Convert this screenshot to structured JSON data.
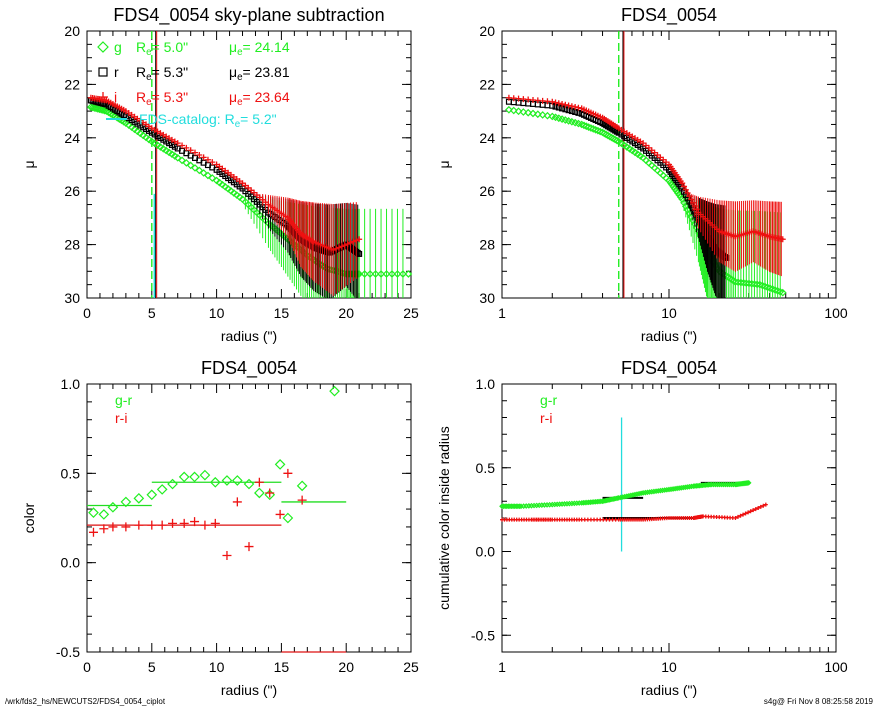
{
  "page": {
    "footer_left": "/wrk/fds2_hs/NEWCUTS2/FDS4_0054_ciplot",
    "footer_right": "s4g@  Fri Nov  8 08:25:58 2019"
  },
  "colors": {
    "g": "#22ee22",
    "r": "#000000",
    "i": "#ee1111",
    "catalog": "#22dddd",
    "color_line": "#22dd22",
    "ri_line": "#dd1111"
  },
  "chart_data": [
    {
      "id": "profile-linear",
      "type": "scatter",
      "title": "FDS4_0054 sky-plane subtraction",
      "xlabel": "radius (\")",
      "ylabel": "μ",
      "xlim": [
        0,
        25
      ],
      "ylim": [
        30,
        20
      ],
      "xticks": [
        "0",
        "5",
        "10",
        "15",
        "20",
        "25"
      ],
      "yticks": [
        "20",
        "22",
        "24",
        "26",
        "28",
        "30"
      ],
      "legend": [
        {
          "band": "g",
          "symbol": "diamond",
          "re_label": "R",
          "re_sub": "e",
          "re_value": "=   5.0\"",
          "mu_label": "μ",
          "mu_sub": "e",
          "mu_value": "= 24.14"
        },
        {
          "band": "r",
          "symbol": "square",
          "re_label": "R",
          "re_sub": "e",
          "re_value": "=   5.3\"",
          "mu_label": "μ",
          "mu_sub": "e",
          "mu_value": "= 23.81"
        },
        {
          "band": "i",
          "symbol": "plus",
          "re_label": "R",
          "re_sub": "e",
          "re_value": "=   5.3\"",
          "mu_label": "μ",
          "mu_sub": "e",
          "mu_value": "= 23.64"
        }
      ],
      "catalog_label": "FDS-catalog: R",
      "catalog_sub": "e",
      "catalog_value": "=   5.2\"",
      "re_markers": {
        "g": 5.0,
        "r": 5.3,
        "i": 5.3,
        "catalog": 5.2
      },
      "series": [
        {
          "name": "g",
          "points": [
            [
              0.3,
              22.85
            ],
            [
              1.5,
              23.0
            ],
            [
              3,
              23.45
            ],
            [
              5,
              24.14
            ],
            [
              7,
              24.75
            ],
            [
              10,
              25.6
            ],
            [
              12,
              26.3
            ],
            [
              14,
              27.2
            ],
            [
              15.5,
              27.8
            ],
            [
              17,
              28.4
            ],
            [
              18.5,
              28.9
            ],
            [
              20,
              29.1
            ],
            [
              21,
              29.1
            ],
            [
              24.8,
              29.1
            ]
          ]
        },
        {
          "name": "r",
          "points": [
            [
              0.3,
              22.6
            ],
            [
              1.5,
              22.75
            ],
            [
              3,
              23.2
            ],
            [
              5,
              23.81
            ],
            [
              7,
              24.4
            ],
            [
              10,
              25.2
            ],
            [
              12,
              25.9
            ],
            [
              14,
              26.8
            ],
            [
              15.5,
              27.3
            ],
            [
              16.5,
              27.8
            ],
            [
              17.5,
              28.1
            ],
            [
              18.7,
              28.3
            ],
            [
              20,
              28.0
            ],
            [
              21,
              28.35
            ]
          ]
        },
        {
          "name": "i",
          "points": [
            [
              0.3,
              22.5
            ],
            [
              1.5,
              22.6
            ],
            [
              3,
              23.0
            ],
            [
              5,
              23.64
            ],
            [
              7,
              24.2
            ],
            [
              10,
              25.0
            ],
            [
              12,
              25.7
            ],
            [
              14,
              26.5
            ],
            [
              15.5,
              27.0
            ],
            [
              16.5,
              27.6
            ],
            [
              17.5,
              27.9
            ],
            [
              19,
              28.2
            ],
            [
              21,
              27.8
            ]
          ]
        }
      ]
    },
    {
      "id": "profile-log",
      "type": "scatter",
      "title": "FDS4_0054",
      "xlabel": "radius (\")",
      "ylabel": "μ",
      "xscale": "log",
      "xlim": [
        1,
        100
      ],
      "ylim": [
        30,
        20
      ],
      "xticks": [
        "1",
        "10",
        "100"
      ],
      "yticks": [
        "20",
        "22",
        "24",
        "26",
        "28",
        "30"
      ],
      "re_markers": {
        "g": 5.0,
        "r": 5.3,
        "i": 5.3
      },
      "series": [
        {
          "name": "g",
          "points": [
            [
              1.1,
              22.95
            ],
            [
              2,
              23.2
            ],
            [
              3,
              23.5
            ],
            [
              4,
              23.8
            ],
            [
              5,
              24.14
            ],
            [
              7,
              24.75
            ],
            [
              10,
              25.6
            ],
            [
              12,
              26.3
            ],
            [
              15,
              27.5
            ],
            [
              17,
              28.3
            ],
            [
              20,
              29.0
            ],
            [
              25,
              29.4
            ],
            [
              35,
              29.5
            ],
            [
              48,
              29.8
            ]
          ]
        },
        {
          "name": "r",
          "points": [
            [
              1.1,
              22.65
            ],
            [
              2,
              22.8
            ],
            [
              3,
              23.1
            ],
            [
              4,
              23.45
            ],
            [
              5,
              23.81
            ],
            [
              7,
              24.4
            ],
            [
              10,
              25.2
            ],
            [
              12,
              25.9
            ],
            [
              15,
              27.0
            ],
            [
              17,
              27.7
            ],
            [
              19,
              28.2
            ],
            [
              22,
              28.5
            ]
          ]
        },
        {
          "name": "i",
          "points": [
            [
              1.1,
              22.5
            ],
            [
              2,
              22.65
            ],
            [
              3,
              22.9
            ],
            [
              4,
              23.25
            ],
            [
              5,
              23.64
            ],
            [
              7,
              24.2
            ],
            [
              10,
              25.0
            ],
            [
              12,
              25.7
            ],
            [
              15,
              26.8
            ],
            [
              20,
              27.5
            ],
            [
              25,
              27.7
            ],
            [
              32,
              27.5
            ],
            [
              40,
              27.7
            ],
            [
              48,
              27.8
            ]
          ]
        }
      ]
    },
    {
      "id": "color-linear",
      "type": "scatter",
      "title": "FDS4_0054",
      "xlabel": "radius (\")",
      "ylabel": "color",
      "xlim": [
        0,
        25
      ],
      "ylim": [
        -0.5,
        1.0
      ],
      "xticks": [
        "0",
        "5",
        "10",
        "15",
        "20",
        "25"
      ],
      "yticks": [
        "-0.5",
        "0.0",
        "0.5",
        "1.0"
      ],
      "legend": [
        "g-r",
        "r-i"
      ],
      "series": [
        {
          "name": "g-r",
          "points": [
            [
              0.5,
              0.28
            ],
            [
              1.3,
              0.27
            ],
            [
              2,
              0.31
            ],
            [
              3,
              0.34
            ],
            [
              4,
              0.36
            ],
            [
              5,
              0.38
            ],
            [
              5.8,
              0.41
            ],
            [
              6.6,
              0.44
            ],
            [
              7.5,
              0.48
            ],
            [
              8.3,
              0.48
            ],
            [
              9.1,
              0.49
            ],
            [
              9.9,
              0.45
            ],
            [
              10.8,
              0.46
            ],
            [
              11.6,
              0.46
            ],
            [
              12.5,
              0.44
            ],
            [
              13.3,
              0.39
            ],
            [
              14.1,
              0.38
            ],
            [
              14.9,
              0.55
            ],
            [
              15.5,
              0.25
            ],
            [
              16.6,
              0.43
            ],
            [
              19.1,
              0.96
            ]
          ]
        },
        {
          "name": "r-i",
          "points": [
            [
              0.5,
              0.17
            ],
            [
              1.3,
              0.19
            ],
            [
              2,
              0.2
            ],
            [
              3,
              0.2
            ],
            [
              4,
              0.21
            ],
            [
              5,
              0.21
            ],
            [
              5.8,
              0.21
            ],
            [
              6.6,
              0.22
            ],
            [
              7.5,
              0.22
            ],
            [
              8.3,
              0.23
            ],
            [
              9.1,
              0.21
            ],
            [
              9.9,
              0.22
            ],
            [
              10.8,
              0.04
            ],
            [
              11.6,
              0.34
            ],
            [
              12.5,
              0.09
            ],
            [
              13.3,
              0.45
            ],
            [
              14.1,
              0.39
            ],
            [
              14.9,
              0.27
            ],
            [
              15.5,
              0.5
            ],
            [
              16.6,
              0.35
            ]
          ]
        }
      ],
      "segments": [
        {
          "name": "g-r",
          "x": [
            0,
            5
          ],
          "y": 0.32
        },
        {
          "name": "g-r",
          "x": [
            5,
            15
          ],
          "y": 0.45
        },
        {
          "name": "g-r",
          "x": [
            15,
            20
          ],
          "y": 0.34
        },
        {
          "name": "r-i",
          "x": [
            0,
            15
          ],
          "y": 0.21
        },
        {
          "name": "r-i",
          "x": [
            15,
            20
          ],
          "y": -0.5
        }
      ]
    },
    {
      "id": "cumulative-color-log",
      "type": "scatter",
      "title": "FDS4_0054",
      "xlabel": "radius (\")",
      "ylabel": "cumulative color inside radius",
      "xscale": "log",
      "xlim": [
        1,
        100
      ],
      "ylim": [
        -0.6,
        1.0
      ],
      "xticks": [
        "1",
        "10",
        "100"
      ],
      "yticks": [
        "-0.5",
        "0.0",
        "0.5",
        "1.0"
      ],
      "legend": [
        "g-r",
        "r-i"
      ],
      "catalog_marker": {
        "x": 5.2,
        "y": [
          0.0,
          0.8
        ]
      },
      "series": [
        {
          "name": "g-r",
          "points": [
            [
              1.0,
              0.27
            ],
            [
              1.3,
              0.27
            ],
            [
              2,
              0.28
            ],
            [
              3,
              0.29
            ],
            [
              4,
              0.3
            ],
            [
              5,
              0.32
            ],
            [
              7,
              0.35
            ],
            [
              10,
              0.37
            ],
            [
              14,
              0.39
            ],
            [
              18,
              0.4
            ],
            [
              25,
              0.4
            ],
            [
              30,
              0.41
            ]
          ]
        },
        {
          "name": "r-i",
          "points": [
            [
              1.0,
              0.19
            ],
            [
              1.5,
              0.19
            ],
            [
              2,
              0.19
            ],
            [
              3,
              0.19
            ],
            [
              5,
              0.19
            ],
            [
              7,
              0.19
            ],
            [
              10,
              0.2
            ],
            [
              14,
              0.2
            ],
            [
              16,
              0.21
            ],
            [
              25,
              0.2
            ],
            [
              38,
              0.28
            ]
          ]
        }
      ],
      "segments": [
        {
          "name": "g-r",
          "x": [
            4.0,
            7.0
          ],
          "y": 0.32
        },
        {
          "name": "g-r",
          "x": [
            15.5,
            30
          ],
          "y": 0.41
        },
        {
          "name": "r-i",
          "x": [
            4.0,
            15.5
          ],
          "y": 0.2
        }
      ]
    }
  ]
}
